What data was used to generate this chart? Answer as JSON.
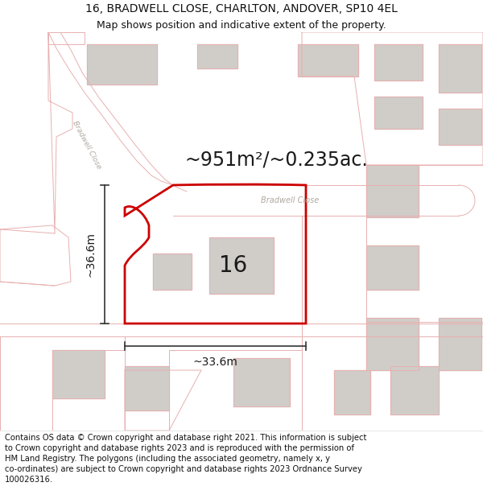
{
  "title_line1": "16, BRADWELL CLOSE, CHARLTON, ANDOVER, SP10 4EL",
  "title_line2": "Map shows position and indicative extent of the property.",
  "area_label": "~951m²/~0.235ac.",
  "number_label": "16",
  "dim_vertical": "~36.6m",
  "dim_horizontal": "~33.6m",
  "road_label": "Bradwell Close",
  "road_label_diag": "Bradwell Close",
  "footer_text": "Contains OS data © Crown copyright and database right 2021. This information is subject to Crown copyright and database rights 2023 and is reproduced with the permission of HM Land Registry. The polygons (including the associated geometry, namely x, y co-ordinates) are subject to Crown copyright and database rights 2023 Ordnance Survey 100026316.",
  "bg_color": "#ffffff",
  "map_bg": "#f5f0ec",
  "plot_color": "#cc0000",
  "parcel_color": "#e8b0b0",
  "building_fill": "#d0ccc8",
  "title_fontsize": 10,
  "subtitle_fontsize": 9,
  "footer_fontsize": 7.2,
  "area_fontsize": 17,
  "number_fontsize": 20,
  "dim_fontsize": 10
}
